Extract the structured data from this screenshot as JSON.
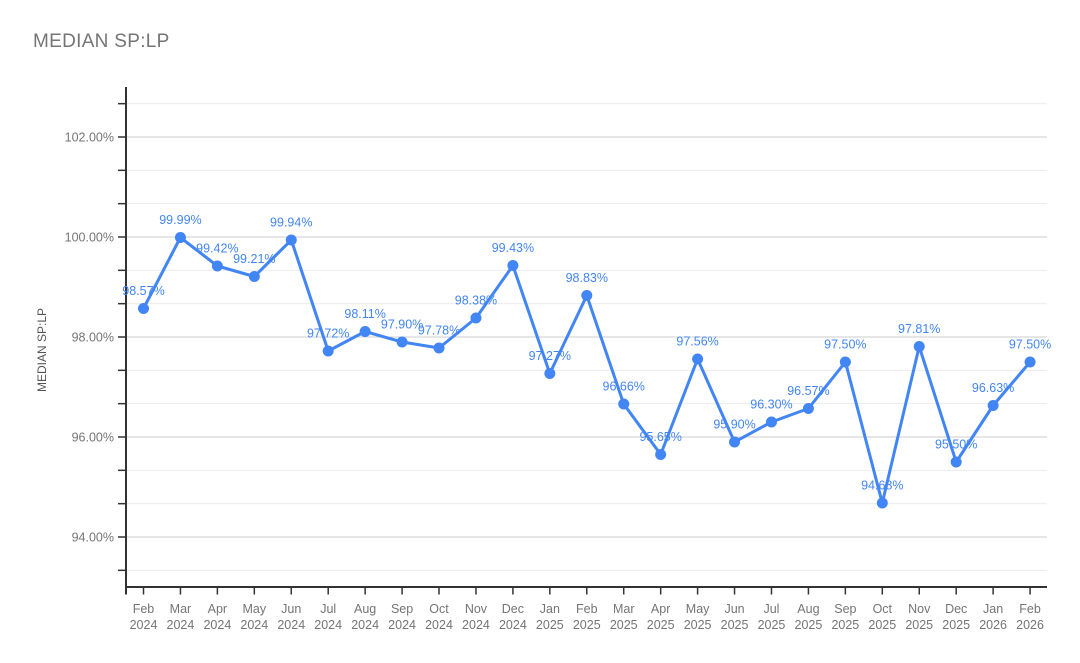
{
  "colors": {
    "series_line": "#4285f4",
    "marker": "#4285f4",
    "point_label": "#4285f4",
    "axis": "#333333",
    "tick_label": "#757575",
    "x_tick_label": "#757575",
    "grid_major": "#cccccc",
    "grid_minor": "#ebebeb",
    "title": "#757575",
    "y_axis_title": "#555555",
    "background": "#ffffff"
  },
  "chart_data": {
    "type": "line",
    "title": "MEDIAN SP:LP",
    "ylabel": "MEDIAN SP:LP",
    "xlabel": "",
    "legend": "none",
    "grid": true,
    "ylim": [
      93,
      103
    ],
    "y_major_step": 2,
    "y_minor_divisions": 3,
    "y_tick_labels": [
      "94.00%",
      "96.00%",
      "98.00%",
      "100.00%",
      "102.00%"
    ],
    "categories": [
      "Feb 2024",
      "Mar 2024",
      "Apr 2024",
      "May 2024",
      "Jun 2024",
      "Jul 2024",
      "Aug 2024",
      "Sep 2024",
      "Oct 2024",
      "Nov 2024",
      "Dec 2024",
      "Jan 2025",
      "Feb 2025",
      "Mar 2025",
      "Apr 2025",
      "May 2025",
      "Jun 2025",
      "Jul 2025",
      "Aug 2025",
      "Sep 2025",
      "Oct 2025",
      "Nov 2025",
      "Dec 2025",
      "Jan 2026",
      "Feb 2026"
    ],
    "values": [
      98.57,
      99.99,
      99.42,
      99.21,
      99.94,
      97.72,
      98.11,
      97.9,
      97.78,
      98.38,
      99.43,
      97.27,
      98.83,
      96.66,
      95.65,
      97.56,
      95.9,
      96.3,
      96.57,
      97.5,
      94.68,
      97.81,
      95.5,
      96.63,
      97.5
    ],
    "point_labels": [
      "98.57%",
      "99.99%",
      "99.42%",
      "99.21%",
      "99.94%",
      "97.72%",
      "98.11%",
      "97.90%",
      "97.78%",
      "98.38%",
      "99.43%",
      "97.27%",
      "98.83%",
      "96.66%",
      "95.65%",
      "97.56%",
      "95.90%",
      "96.30%",
      "96.57%",
      "97.50%",
      "94.68%",
      "97.81%",
      "95.50%",
      "96.63%",
      "97.50%"
    ]
  }
}
